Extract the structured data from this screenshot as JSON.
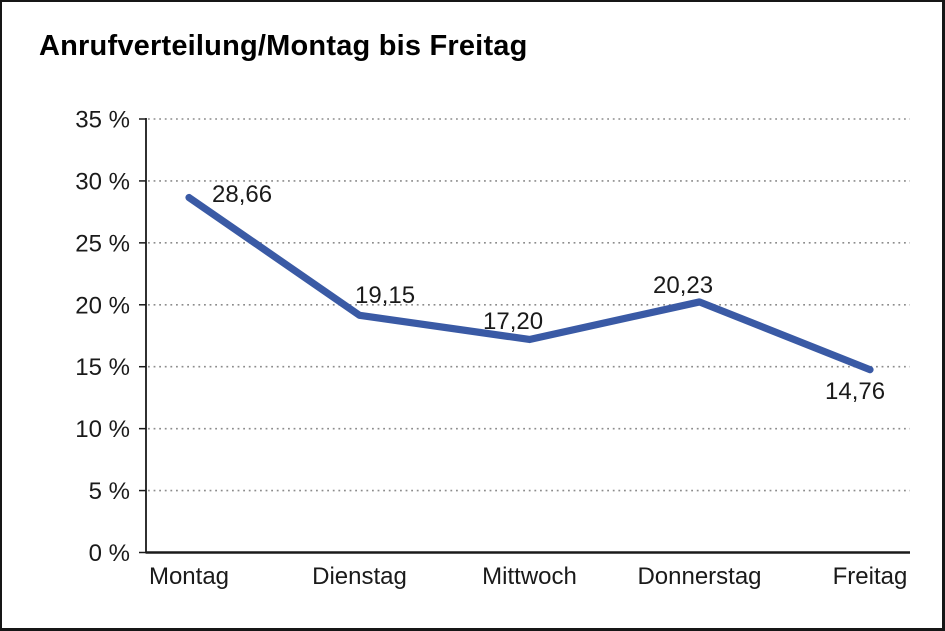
{
  "title": "Anrufverteilung/Montag bis Freitag",
  "chart_data": {
    "type": "line",
    "title": "Anrufverteilung/Montag bis Freitag",
    "categories": [
      "Montag",
      "Dienstag",
      "Mittwoch",
      "Donnerstag",
      "Freitag"
    ],
    "series": [
      {
        "name": "Anrufverteilung",
        "values": [
          28.66,
          19.15,
          17.2,
          20.23,
          14.76
        ]
      }
    ],
    "point_labels": [
      "28,66",
      "19,15",
      "17,20",
      "20,23",
      "14,76"
    ],
    "xlabel": "",
    "ylabel": "",
    "ylim": [
      0,
      35
    ],
    "ytick_values": [
      0,
      5,
      10,
      15,
      20,
      25,
      30,
      35
    ],
    "ytick_labels": [
      "0 %",
      "5 %",
      "10 %",
      "15 %",
      "20 %",
      "25 %",
      "30 %",
      "35 %"
    ],
    "grid": "horizontal-dotted",
    "legend_position": "none",
    "line_color": "#3A5AA5",
    "axis_color": "#1a1a1a",
    "grid_color": "#8c8c8c"
  }
}
